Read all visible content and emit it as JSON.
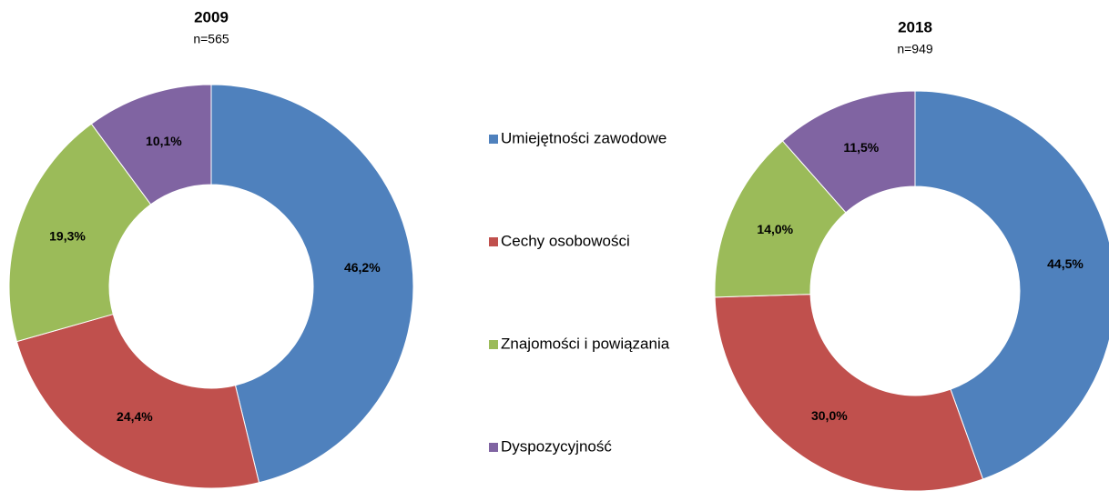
{
  "chart_data": [
    {
      "type": "donut",
      "title": "2009",
      "subtitle": "n=565",
      "values": [
        46.2,
        24.4,
        19.3,
        10.1
      ],
      "value_labels": [
        "46,2%",
        "24,4%",
        "19,3%",
        "10,1%"
      ]
    },
    {
      "type": "donut",
      "title": "2018",
      "subtitle": "n=949",
      "values": [
        44.5,
        30.0,
        14.0,
        11.5
      ],
      "value_labels": [
        "44,5%",
        "30,0%",
        "14,0%",
        "11,5%"
      ]
    }
  ],
  "legend": {
    "categories": [
      "Umiejętności zawodowe",
      "Cechy osobowości",
      "Znajomości i powiązania",
      "Dyspozycyjność"
    ],
    "colors": [
      "#4f81bd",
      "#c0504d",
      "#9bbb59",
      "#8064a2"
    ]
  }
}
